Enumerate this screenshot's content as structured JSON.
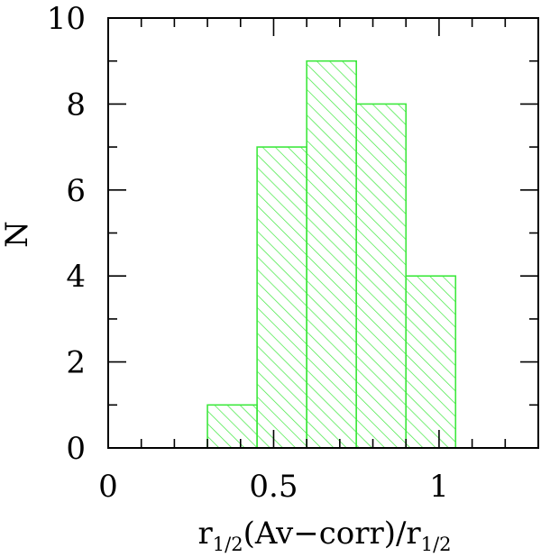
{
  "chart_data": {
    "type": "bar",
    "style": "histogram",
    "bins": [
      {
        "x0": 0.3,
        "x1": 0.45,
        "count": 1
      },
      {
        "x0": 0.45,
        "x1": 0.6,
        "count": 7
      },
      {
        "x0": 0.6,
        "x1": 0.75,
        "count": 9
      },
      {
        "x0": 0.75,
        "x1": 0.9,
        "count": 8
      },
      {
        "x0": 0.9,
        "x1": 1.05,
        "count": 4
      }
    ],
    "xlim": [
      0,
      1.3
    ],
    "ylim": [
      0,
      10
    ],
    "x_ticks": [
      {
        "value": 0,
        "label": "0"
      },
      {
        "value": 0.5,
        "label": "0.5"
      },
      {
        "value": 1,
        "label": "1"
      }
    ],
    "y_ticks": [
      {
        "value": 0,
        "label": "0"
      },
      {
        "value": 2,
        "label": "2"
      },
      {
        "value": 4,
        "label": "4"
      },
      {
        "value": 6,
        "label": "6"
      },
      {
        "value": 8,
        "label": "8"
      },
      {
        "value": 10,
        "label": "10"
      }
    ],
    "x_minor_step": 0.1,
    "y_minor_step": 1,
    "xlabel": {
      "r": "r",
      "sub": "1/2",
      "middle": "(Av−corr)/r",
      "sub2": "1/2"
    },
    "ylabel": "N",
    "hatch_color": "#3ee83e",
    "grid": false
  }
}
